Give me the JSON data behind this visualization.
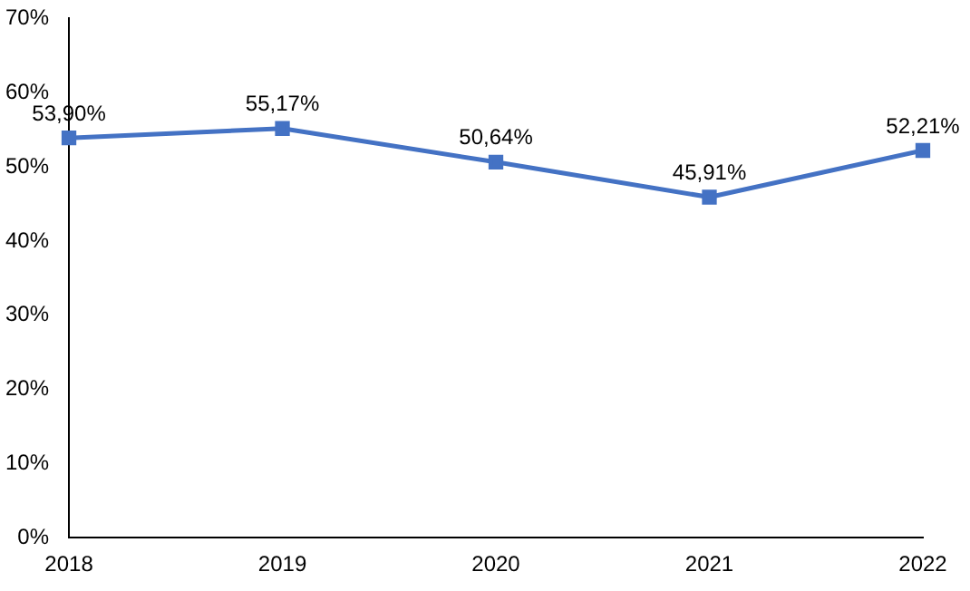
{
  "chart_data": {
    "type": "line",
    "categories": [
      "2018",
      "2019",
      "2020",
      "2021",
      "2022"
    ],
    "series": [
      {
        "color": "#4472c4",
        "values": [
          53.9,
          55.17,
          50.64,
          45.91,
          52.21
        ],
        "value_labels": [
          "53,90%",
          "55,17%",
          "50,64%",
          "45,91%",
          "52,21%"
        ]
      }
    ],
    "ylim": [
      0,
      70
    ],
    "yticks": [
      {
        "value": 0,
        "label": "0%"
      },
      {
        "value": 10,
        "label": "10%"
      },
      {
        "value": 20,
        "label": "20%"
      },
      {
        "value": 30,
        "label": "30%"
      },
      {
        "value": 40,
        "label": "40%"
      },
      {
        "value": 50,
        "label": "50%"
      },
      {
        "value": 60,
        "label": "60%"
      },
      {
        "value": 70,
        "label": "70%"
      }
    ],
    "grid": false,
    "legend": false,
    "marker": "square",
    "line_style": "solid"
  }
}
